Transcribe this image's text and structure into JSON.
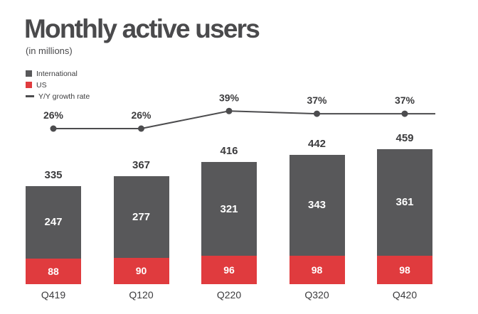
{
  "header": {
    "title": "Monthly active users",
    "subtitle": "(in millions)"
  },
  "legend": [
    {
      "label": "International",
      "color": "#58585a",
      "type": "square"
    },
    {
      "label": "US",
      "color": "#e03b3e",
      "type": "square"
    },
    {
      "label": "Y/Y growth rate",
      "color": "#4c4c4e",
      "type": "line"
    }
  ],
  "colors": {
    "international": "#58585a",
    "us": "#e03b3e",
    "growth_line": "#4c4c4e",
    "text_dark": "#3b3b3d",
    "title": "#4a4a4c",
    "background": "#ffffff"
  },
  "chart_data": {
    "type": "bar",
    "stacked": true,
    "title": "Monthly active users",
    "subtitle": "(in millions)",
    "unit": "millions",
    "categories": [
      "Q419",
      "Q120",
      "Q220",
      "Q320",
      "Q420"
    ],
    "series": [
      {
        "name": "US",
        "color": "#e03b3e",
        "values": [
          88,
          90,
          96,
          98,
          98
        ]
      },
      {
        "name": "International",
        "color": "#58585a",
        "values": [
          247,
          277,
          321,
          343,
          361
        ]
      }
    ],
    "totals": [
      335,
      367,
      416,
      442,
      459
    ],
    "growth_rate": {
      "name": "Y/Y growth rate",
      "values_pct": [
        26,
        26,
        39,
        37,
        37
      ],
      "labels": [
        "26%",
        "26%",
        "39%",
        "37%",
        "37%"
      ]
    },
    "ylim": [
      0,
      500
    ],
    "grid": false,
    "legend_position": "top-left"
  }
}
